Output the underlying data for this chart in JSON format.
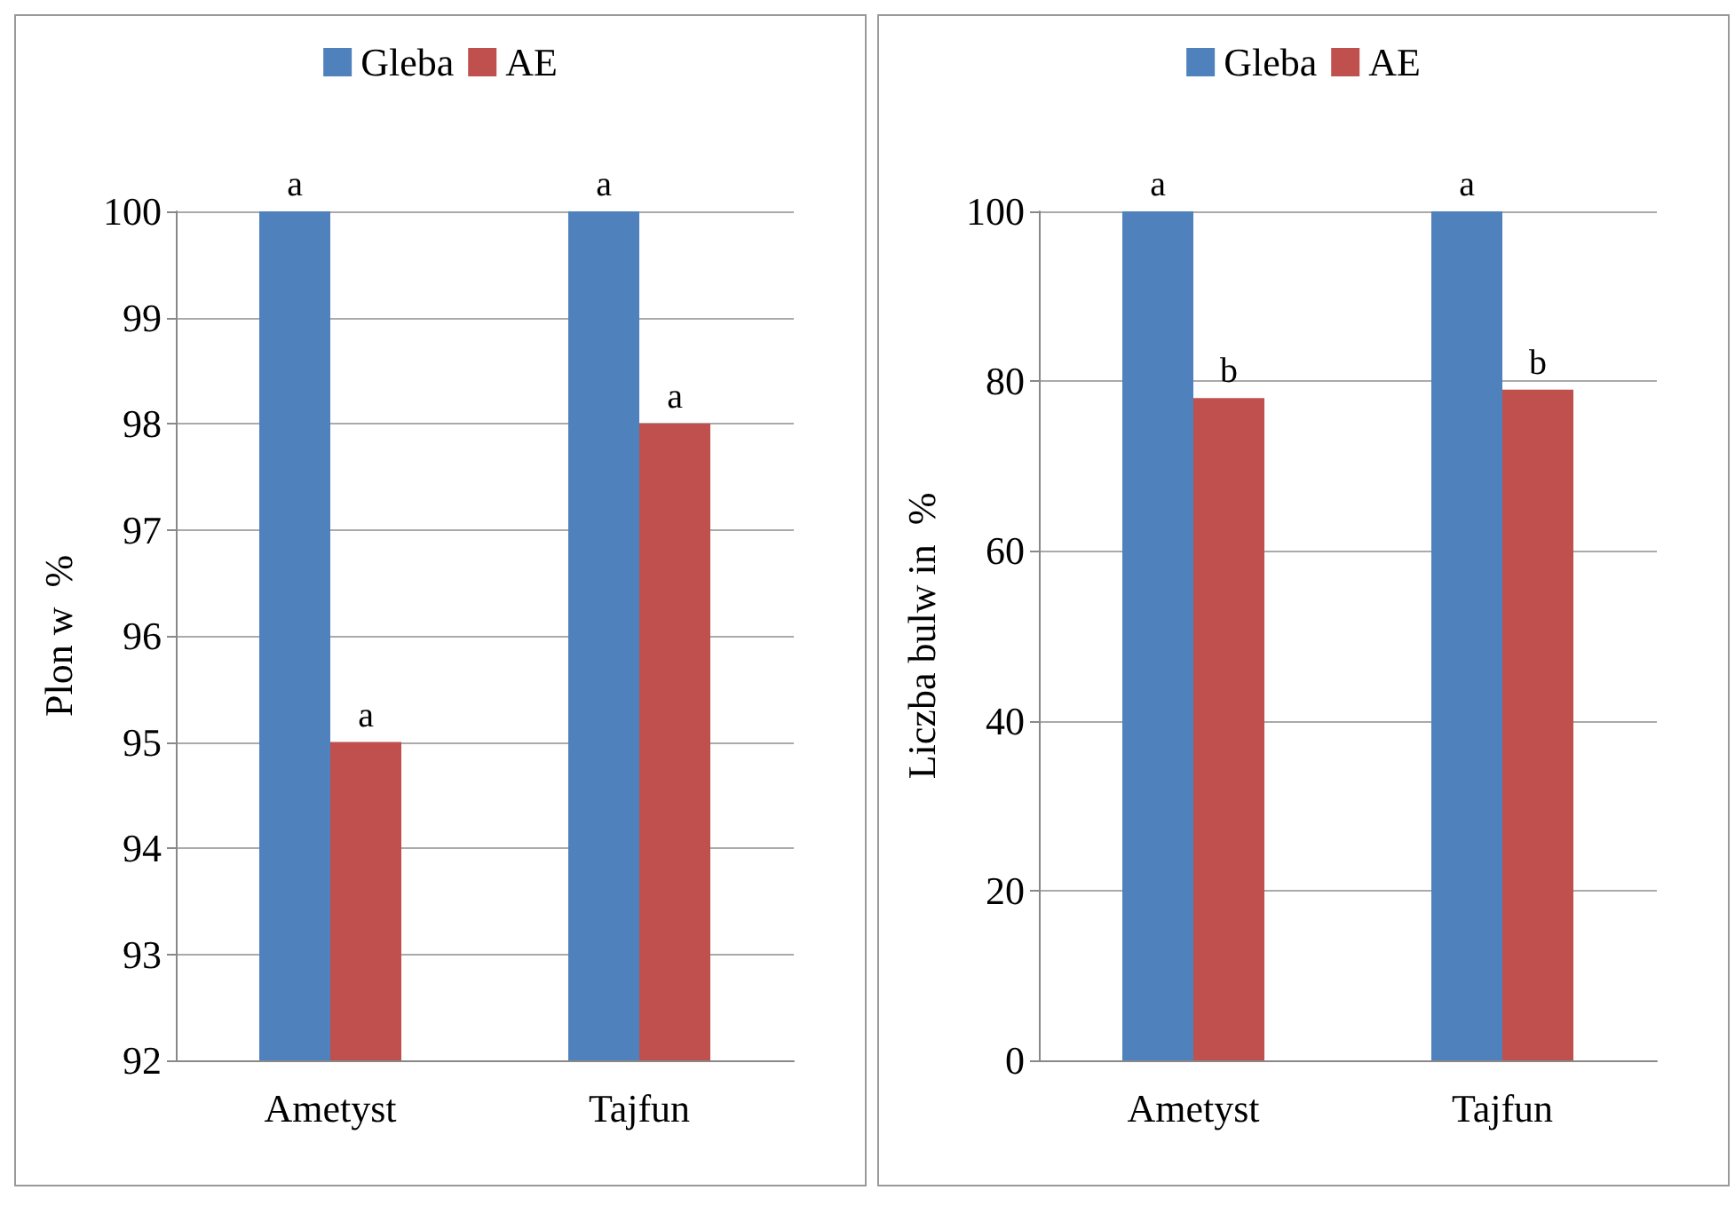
{
  "chart_data": [
    {
      "type": "bar",
      "categories": [
        "Ametyst",
        "Tajfun"
      ],
      "ylabel": "Plon w  %",
      "ylim": [
        92,
        100
      ],
      "yticks": [
        92,
        93,
        94,
        95,
        96,
        97,
        98,
        99,
        100
      ],
      "grid": "y",
      "legend": "top",
      "series": [
        {
          "name": "Gleba",
          "color": "#4f81bd",
          "values": [
            100,
            100
          ]
        },
        {
          "name": "AE",
          "color": "#c0504d",
          "values": [
            95,
            98
          ]
        }
      ],
      "annotations": [
        {
          "text": "a",
          "x": "Ametyst",
          "y": 100
        },
        {
          "text": "a",
          "x": "Ametyst",
          "y": 95
        },
        {
          "text": "a",
          "x": "Tajfun",
          "y": 100
        },
        {
          "text": "a",
          "x": "Tajfun",
          "y": 98
        }
      ]
    },
    {
      "type": "bar",
      "categories": [
        "Ametyst",
        "Tajfun"
      ],
      "ylabel": "Liczba bulw in  %",
      "ylim": [
        0,
        100
      ],
      "yticks": [
        0,
        20,
        40,
        60,
        80,
        100
      ],
      "grid": "y",
      "legend": "top",
      "series": [
        {
          "name": "Gleba",
          "color": "#4f81bd",
          "values": [
            100,
            100
          ]
        },
        {
          "name": "AE",
          "color": "#c0504d",
          "values": [
            78,
            79
          ]
        }
      ],
      "annotations": [
        {
          "text": "a",
          "x": "Ametyst",
          "y": 100
        },
        {
          "text": "b",
          "x": "Ametyst",
          "y": 78
        },
        {
          "text": "a",
          "x": "Tajfun",
          "y": 100
        },
        {
          "text": "b",
          "x": "Tajfun",
          "y": 79
        }
      ]
    }
  ]
}
